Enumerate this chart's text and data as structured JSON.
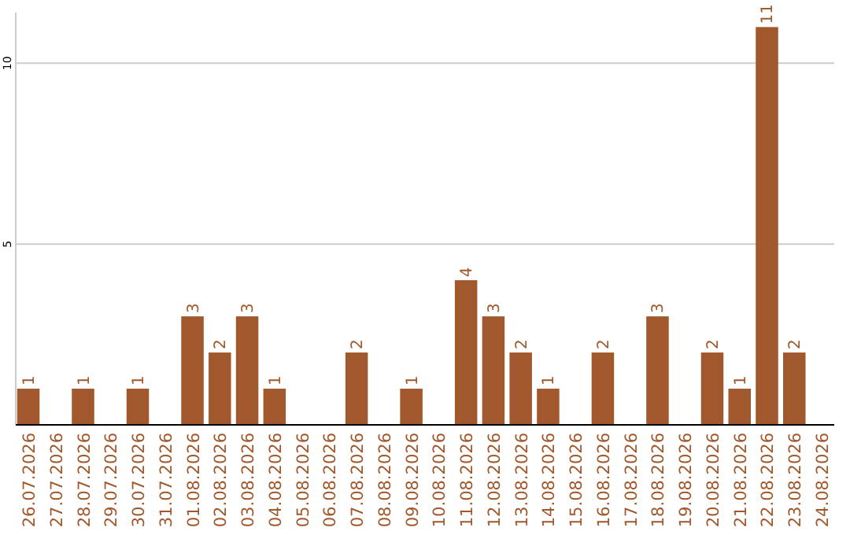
{
  "chart_data": {
    "type": "bar",
    "categories": [
      "26.07.2026",
      "27.07.2026",
      "28.07.2026",
      "29.07.2026",
      "30.07.2026",
      "31.07.2026",
      "01.08.2026",
      "02.08.2026",
      "03.08.2026",
      "04.08.2026",
      "05.08.2026",
      "06.08.2026",
      "07.08.2026",
      "08.08.2026",
      "09.08.2026",
      "10.08.2026",
      "11.08.2026",
      "12.08.2026",
      "13.08.2026",
      "14.08.2026",
      "15.08.2026",
      "16.08.2026",
      "17.08.2026",
      "18.08.2026",
      "19.08.2026",
      "20.08.2026",
      "21.08.2026",
      "22.08.2026",
      "23.08.2026",
      "24.08.2026"
    ],
    "values": [
      1,
      0,
      1,
      0,
      1,
      0,
      3,
      2,
      3,
      1,
      0,
      0,
      2,
      0,
      1,
      0,
      4,
      3,
      2,
      1,
      0,
      2,
      0,
      3,
      0,
      2,
      1,
      11,
      2,
      0
    ],
    "value_labels": [
      "1",
      null,
      "1",
      null,
      "1",
      null,
      "3",
      "2",
      "3",
      "1",
      null,
      null,
      "2",
      null,
      "1",
      null,
      "4",
      "3",
      "2",
      "1",
      null,
      "2",
      null,
      "3",
      null,
      "2",
      "1",
      "11",
      "2",
      null
    ],
    "color": "#a0582c",
    "ylim": [
      0,
      11.4
    ],
    "yticks": [
      5,
      10
    ],
    "grid": "y"
  }
}
